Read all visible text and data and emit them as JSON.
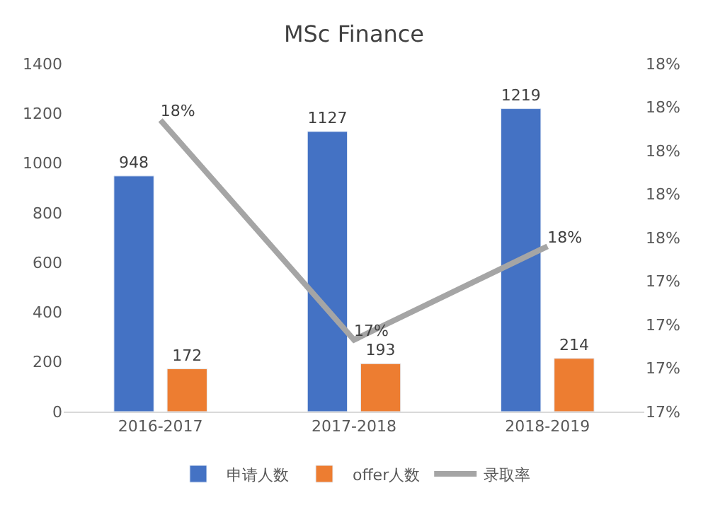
{
  "chart_data": {
    "type": "bar",
    "title": "MSc Finance",
    "categories": [
      "2016-2017",
      "2017-2018",
      "2018-2019"
    ],
    "series": [
      {
        "name": "申请人数",
        "color": "#4472c4",
        "values": [
          948,
          1127,
          1219
        ],
        "data_labels": true
      },
      {
        "name": "offer人数",
        "color": "#ed7d31",
        "values": [
          172,
          193,
          214
        ],
        "data_labels": true
      },
      {
        "name": "录取率",
        "type": "line",
        "axis": "y2",
        "color": "#a5a5a5",
        "values": [
          18.14,
          17.13,
          17.56
        ],
        "value_labels": [
          "18%",
          "17%",
          "18%"
        ],
        "marker": "none"
      }
    ],
    "ylim": [
      0,
      1400
    ],
    "yticks": [
      0,
      200,
      400,
      600,
      800,
      1000,
      1200,
      1400
    ],
    "y2lim": [
      16.8,
      18.4
    ],
    "y2ticks": [
      {
        "value": 16.8,
        "label": "17%"
      },
      {
        "value": 17.0,
        "label": "17%"
      },
      {
        "value": 17.2,
        "label": "17%"
      },
      {
        "value": 17.4,
        "label": "17%"
      },
      {
        "value": 17.6,
        "label": "18%"
      },
      {
        "value": 17.8,
        "label": "18%"
      },
      {
        "value": 18.0,
        "label": "18%"
      },
      {
        "value": 18.2,
        "label": "18%"
      },
      {
        "value": 18.4,
        "label": "18%"
      }
    ],
    "legend": "bottom"
  }
}
